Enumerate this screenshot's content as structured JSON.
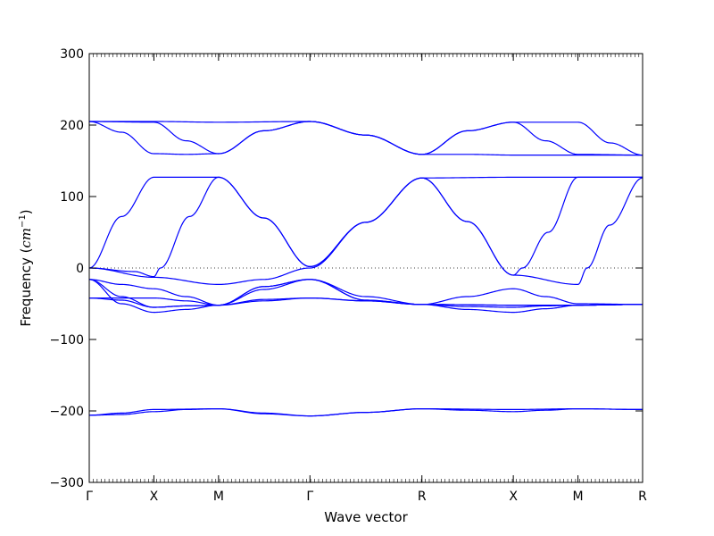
{
  "chart_data": {
    "type": "line",
    "title": "",
    "xlabel": "Wave vector",
    "ylabel": "Frequency",
    "ylabel_unit": "cm",
    "ylabel_unit_exponent": "−1",
    "ylim": [
      -300,
      300
    ],
    "y_ticks": [
      -300,
      -200,
      -100,
      0,
      100,
      200,
      300
    ],
    "y_tick_labels": [
      "−300",
      "−200",
      "−100",
      "0",
      "100",
      "200",
      "300"
    ],
    "x_ticks": [
      {
        "label": "Γ",
        "position": 0
      },
      {
        "label": "X",
        "position": 1
      },
      {
        "label": "M",
        "position": 2
      },
      {
        "label": "Γ",
        "position": 3.414
      },
      {
        "label": "R",
        "position": 5.146
      },
      {
        "label": "X",
        "position": 6.56
      },
      {
        "label": "M",
        "position": 7.56
      },
      {
        "label": "R",
        "position": 8.56
      }
    ],
    "xlim": [
      0,
      8.56
    ],
    "zero_line": {
      "y": 0,
      "style": "dotted",
      "color": "#000000"
    },
    "line_color": "#0000ff",
    "legend": "none",
    "grid": false,
    "series": [
      {
        "knots": [
          [
            0,
            205
          ],
          [
            1,
            204
          ],
          [
            1.5,
            178
          ],
          [
            2,
            160
          ],
          [
            2.7,
            192
          ],
          [
            3.414,
            205
          ],
          [
            4.28,
            186
          ],
          [
            5.146,
            159
          ],
          [
            5.85,
            192
          ],
          [
            6.56,
            204
          ],
          [
            7.56,
            204
          ],
          [
            8.06,
            175
          ],
          [
            8.56,
            158
          ]
        ]
      },
      {
        "knots": [
          [
            0,
            205
          ],
          [
            0.5,
            190
          ],
          [
            1,
            160
          ],
          [
            1.5,
            159
          ],
          [
            2,
            160
          ],
          [
            2.7,
            192
          ],
          [
            3.414,
            205
          ],
          [
            4.28,
            186
          ],
          [
            5.146,
            159
          ],
          [
            5.85,
            192
          ],
          [
            6.56,
            204
          ],
          [
            7.06,
            178
          ],
          [
            7.56,
            159
          ],
          [
            8.56,
            158
          ]
        ]
      },
      {
        "knots": [
          [
            0,
            205
          ],
          [
            1,
            205
          ],
          [
            2,
            204
          ],
          [
            3.414,
            205
          ],
          [
            4.28,
            186
          ],
          [
            5.146,
            159
          ],
          [
            5.85,
            159
          ],
          [
            6.56,
            158
          ],
          [
            7.56,
            158
          ],
          [
            8.56,
            158
          ]
        ]
      },
      {
        "knots": [
          [
            0,
            0
          ],
          [
            0.5,
            72
          ],
          [
            1,
            127
          ],
          [
            2,
            127
          ],
          [
            2.7,
            70
          ],
          [
            3.414,
            2
          ],
          [
            4.28,
            64
          ],
          [
            5.146,
            126
          ],
          [
            6.56,
            127
          ],
          [
            7.56,
            127
          ],
          [
            8.56,
            127
          ]
        ]
      },
      {
        "knots": [
          [
            0,
            0
          ],
          [
            0.7,
            -5
          ],
          [
            1,
            -12
          ],
          [
            1.1,
            0
          ],
          [
            1.55,
            72
          ],
          [
            2,
            127
          ],
          [
            2.7,
            70
          ],
          [
            3.414,
            2
          ],
          [
            4.28,
            64
          ],
          [
            5.146,
            126
          ],
          [
            5.85,
            65
          ],
          [
            6.56,
            -10
          ],
          [
            6.7,
            0
          ],
          [
            7.1,
            50
          ],
          [
            7.56,
            127
          ],
          [
            8.56,
            127
          ]
        ]
      },
      {
        "knots": [
          [
            0,
            0
          ],
          [
            1,
            -13
          ],
          [
            2,
            -23
          ],
          [
            2.7,
            -16
          ],
          [
            3.414,
            0
          ],
          [
            4.28,
            64
          ],
          [
            5.146,
            126
          ],
          [
            5.85,
            65
          ],
          [
            6.56,
            -10
          ],
          [
            7.56,
            -23
          ],
          [
            7.7,
            0
          ],
          [
            8.05,
            60
          ],
          [
            8.56,
            126
          ]
        ]
      },
      {
        "knots": [
          [
            0,
            -16
          ],
          [
            0.5,
            -23
          ],
          [
            1,
            -29
          ],
          [
            1.5,
            -40
          ],
          [
            2,
            -52
          ],
          [
            2.7,
            -26
          ],
          [
            3.414,
            -16
          ],
          [
            4.28,
            -40
          ],
          [
            5.146,
            -51
          ],
          [
            5.85,
            -40
          ],
          [
            6.56,
            -29
          ],
          [
            7.06,
            -40
          ],
          [
            7.56,
            -50
          ],
          [
            8.56,
            -51
          ]
        ]
      },
      {
        "knots": [
          [
            0,
            -16
          ],
          [
            0.5,
            -40
          ],
          [
            1,
            -55
          ],
          [
            1.5,
            -53
          ],
          [
            2,
            -52
          ],
          [
            2.7,
            -26
          ],
          [
            3.414,
            -16
          ],
          [
            4.28,
            -45
          ],
          [
            5.146,
            -51
          ],
          [
            5.85,
            -58
          ],
          [
            6.56,
            -62
          ],
          [
            7.06,
            -57
          ],
          [
            7.56,
            -52
          ],
          [
            8.56,
            -51
          ]
        ]
      },
      {
        "knots": [
          [
            0,
            -16
          ],
          [
            0.5,
            -50
          ],
          [
            1,
            -62
          ],
          [
            1.5,
            -58
          ],
          [
            2,
            -52
          ],
          [
            2.7,
            -30
          ],
          [
            3.414,
            -16
          ],
          [
            4.28,
            -45
          ],
          [
            5.146,
            -51
          ],
          [
            5.85,
            -54
          ],
          [
            6.56,
            -55
          ],
          [
            7.06,
            -53
          ],
          [
            7.56,
            -52
          ],
          [
            8.56,
            -51
          ]
        ]
      },
      {
        "knots": [
          [
            0,
            -42
          ],
          [
            1,
            -42
          ],
          [
            1.5,
            -46
          ],
          [
            2,
            -52
          ],
          [
            2.7,
            -44
          ],
          [
            3.414,
            -42
          ],
          [
            4.28,
            -46
          ],
          [
            5.146,
            -51
          ],
          [
            6.56,
            -52
          ],
          [
            7.56,
            -52
          ],
          [
            8.56,
            -51
          ]
        ]
      },
      {
        "knots": [
          [
            0,
            -42
          ],
          [
            0.5,
            -45
          ],
          [
            1,
            -55
          ],
          [
            1.5,
            -53
          ],
          [
            2,
            -52
          ],
          [
            2.7,
            -46
          ],
          [
            3.414,
            -42
          ],
          [
            4.28,
            -46
          ],
          [
            5.146,
            -51
          ],
          [
            6.56,
            -52
          ],
          [
            7.56,
            -52
          ],
          [
            8.56,
            -51
          ]
        ]
      },
      {
        "knots": [
          [
            0,
            -206
          ],
          [
            0.5,
            -203
          ],
          [
            1,
            -198
          ],
          [
            2,
            -197
          ],
          [
            2.7,
            -203
          ],
          [
            3.414,
            -207
          ],
          [
            4.28,
            -202
          ],
          [
            5.146,
            -197
          ],
          [
            6.56,
            -198
          ],
          [
            7.56,
            -197
          ],
          [
            8.56,
            -198
          ]
        ]
      },
      {
        "knots": [
          [
            0,
            -206
          ],
          [
            0.5,
            -205
          ],
          [
            1,
            -201
          ],
          [
            1.5,
            -198
          ],
          [
            2,
            -197
          ],
          [
            2.7,
            -204
          ],
          [
            3.414,
            -207
          ],
          [
            4.28,
            -202
          ],
          [
            5.146,
            -197
          ],
          [
            5.85,
            -199
          ],
          [
            6.56,
            -201
          ],
          [
            7.06,
            -199
          ],
          [
            7.56,
            -197
          ],
          [
            8.56,
            -198
          ]
        ]
      }
    ]
  }
}
